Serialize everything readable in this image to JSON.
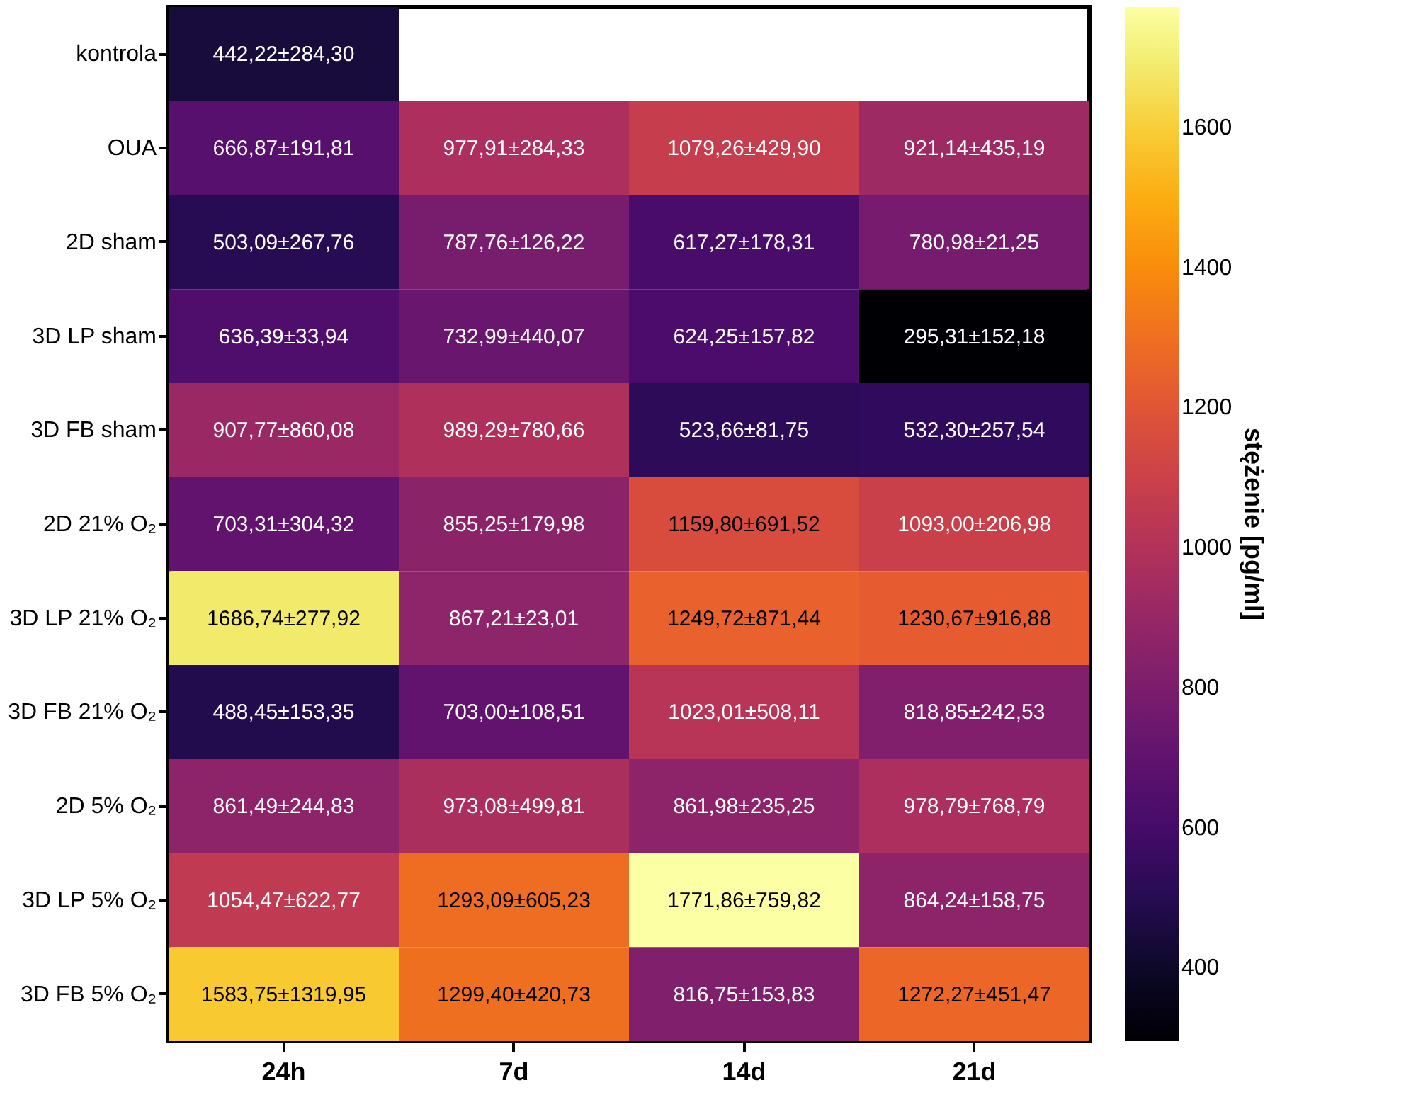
{
  "chart_data": {
    "type": "heatmap",
    "categories": [
      "24h",
      "7d",
      "14d",
      "21d"
    ],
    "y_categories": [
      "kontrola",
      "OUA",
      "2D sham",
      "3D LP sham",
      "3D FB sham",
      "2D 21% O₂",
      "3D LP 21% O₂",
      "3D FB 21% O₂",
      "2D 5% O₂",
      "3D LP 5% O₂",
      "3D FB 5% O₂"
    ],
    "cells": [
      [
        442.22,
        null,
        null,
        null
      ],
      [
        666.87,
        977.91,
        1079.26,
        921.14
      ],
      [
        503.09,
        787.76,
        617.27,
        780.98
      ],
      [
        636.39,
        732.99,
        624.25,
        295.31
      ],
      [
        907.77,
        989.29,
        523.66,
        532.3
      ],
      [
        703.31,
        855.25,
        1159.8,
        1093.0
      ],
      [
        1686.74,
        867.21,
        1249.72,
        1230.67
      ],
      [
        488.45,
        703.0,
        1023.01,
        818.85
      ],
      [
        861.49,
        973.08,
        861.98,
        978.79
      ],
      [
        1054.47,
        1293.09,
        1771.86,
        864.24
      ],
      [
        1583.75,
        1299.4,
        816.75,
        1272.27
      ]
    ],
    "cell_labels": [
      [
        "442,22±284,30",
        null,
        null,
        null
      ],
      [
        "666,87±191,81",
        "977,91±284,33",
        "1079,26±429,90",
        "921,14±435,19"
      ],
      [
        "503,09±267,76",
        "787,76±126,22",
        "617,27±178,31",
        "780,98±21,25"
      ],
      [
        "636,39±33,94",
        "732,99±440,07",
        "624,25±157,82",
        "295,31±152,18"
      ],
      [
        "907,77±860,08",
        "989,29±780,66",
        "523,66±81,75",
        "532,30±257,54"
      ],
      [
        "703,31±304,32",
        "855,25±179,98",
        "1159,80±691,52",
        "1093,00±206,98"
      ],
      [
        "1686,74±277,92",
        "867,21±23,01",
        "1249,72±871,44",
        "1230,67±916,88"
      ],
      [
        "488,45±153,35",
        "703,00±108,51",
        "1023,01±508,11",
        "818,85±242,53"
      ],
      [
        "861,49±244,83",
        "973,08±499,81",
        "861,98±235,25",
        "978,79±768,79"
      ],
      [
        "1054,47±622,77",
        "1293,09±605,23",
        "1771,86±759,82",
        "864,24±158,75"
      ],
      [
        "1583,75±1319,95",
        "1299,40±420,73",
        "816,75±153,83",
        "1272,27±451,47"
      ]
    ],
    "clabel": "stężenie [pg/ml]",
    "clim": [
      295.31,
      1771.86
    ],
    "cticks": [
      400,
      600,
      800,
      1000,
      1200,
      1400,
      1600
    ]
  }
}
